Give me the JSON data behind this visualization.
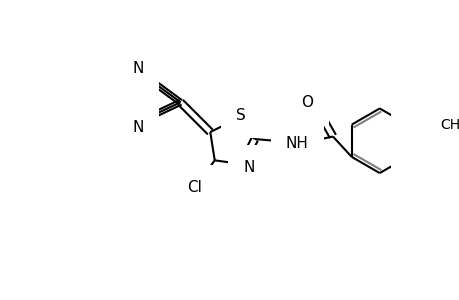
{
  "bg_color": "#ffffff",
  "line_color": "#000000",
  "gray_line_color": "#808080",
  "line_width": 1.5,
  "font_size": 11,
  "fig_width": 4.6,
  "fig_height": 3.0,
  "dpi": 100,
  "xlim": [
    0,
    460
  ],
  "ylim": [
    0,
    300
  ]
}
